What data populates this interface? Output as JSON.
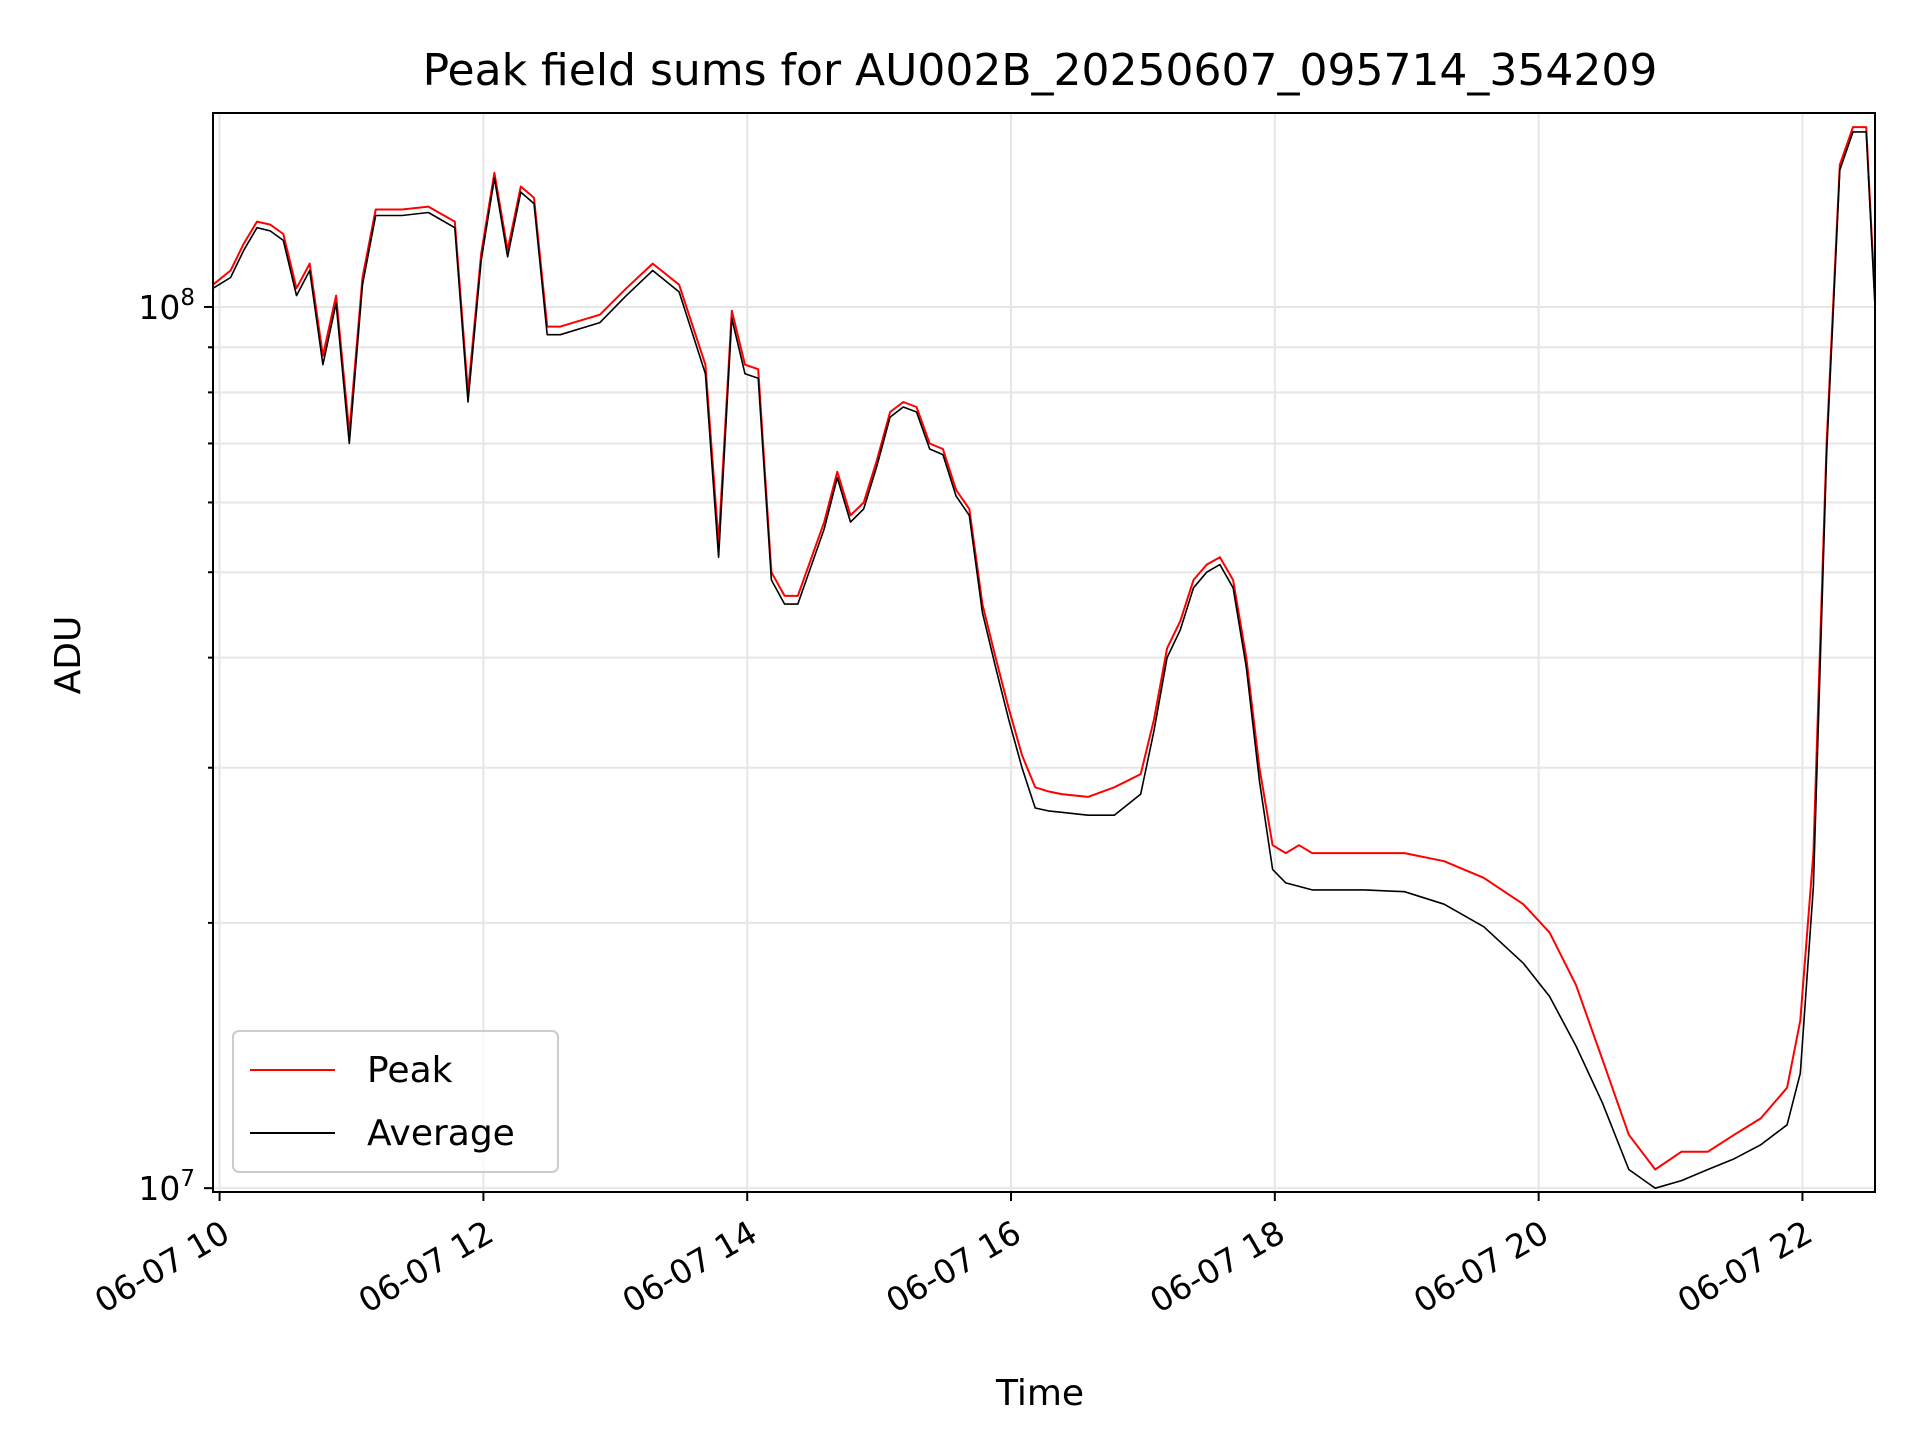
{
  "chart_data": {
    "type": "line",
    "title": "Peak field sums for AU002B_20250607_095714_354209",
    "xlabel": "Time",
    "ylabel": "ADU",
    "y_scale": "log",
    "ylim": [
      9900000,
      166000000
    ],
    "xlim": [
      "2025-06-07 09:57",
      "2025-06-07 22:33"
    ],
    "x_ticks": [
      "2025-06-07 10:00",
      "2025-06-07 12:00",
      "2025-06-07 14:00",
      "2025-06-07 16:00",
      "2025-06-07 18:00",
      "2025-06-07 20:00",
      "2025-06-07 22:00"
    ],
    "x_tick_labels": [
      "06-07 10",
      "06-07 12",
      "06-07 14",
      "06-07 16",
      "06-07 18",
      "06-07 20",
      "06-07 22"
    ],
    "y_tick_labels": [
      {
        "value": 10000000,
        "base": "10",
        "exp": "7"
      },
      {
        "value": 100000000,
        "base": "10",
        "exp": "8"
      }
    ],
    "grid": true,
    "legend_position": "lower-left",
    "series": [
      {
        "name": "Peak",
        "color": "#ff0000",
        "x": [
          "2025-06-07 09:57",
          "2025-06-07 10:05",
          "2025-06-07 10:11",
          "2025-06-07 10:17",
          "2025-06-07 10:23",
          "2025-06-07 10:29",
          "2025-06-07 10:35",
          "2025-06-07 10:41",
          "2025-06-07 10:47",
          "2025-06-07 10:53",
          "2025-06-07 10:59",
          "2025-06-07 11:05",
          "2025-06-07 11:11",
          "2025-06-07 11:23",
          "2025-06-07 11:35",
          "2025-06-07 11:47",
          "2025-06-07 11:53",
          "2025-06-07 11:59",
          "2025-06-07 12:05",
          "2025-06-07 12:11",
          "2025-06-07 12:17",
          "2025-06-07 12:23",
          "2025-06-07 12:29",
          "2025-06-07 12:35",
          "2025-06-07 12:53",
          "2025-06-07 13:05",
          "2025-06-07 13:17",
          "2025-06-07 13:29",
          "2025-06-07 13:41",
          "2025-06-07 13:47",
          "2025-06-07 13:53",
          "2025-06-07 13:59",
          "2025-06-07 14:05",
          "2025-06-07 14:11",
          "2025-06-07 14:17",
          "2025-06-07 14:23",
          "2025-06-07 14:35",
          "2025-06-07 14:41",
          "2025-06-07 14:47",
          "2025-06-07 14:53",
          "2025-06-07 14:59",
          "2025-06-07 15:05",
          "2025-06-07 15:11",
          "2025-06-07 15:17",
          "2025-06-07 15:23",
          "2025-06-07 15:29",
          "2025-06-07 15:35",
          "2025-06-07 15:41",
          "2025-06-07 15:47",
          "2025-06-07 15:53",
          "2025-06-07 15:59",
          "2025-06-07 16:05",
          "2025-06-07 16:11",
          "2025-06-07 16:17",
          "2025-06-07 16:23",
          "2025-06-07 16:35",
          "2025-06-07 16:47",
          "2025-06-07 16:59",
          "2025-06-07 17:05",
          "2025-06-07 17:11",
          "2025-06-07 17:17",
          "2025-06-07 17:23",
          "2025-06-07 17:29",
          "2025-06-07 17:35",
          "2025-06-07 17:41",
          "2025-06-07 17:47",
          "2025-06-07 17:53",
          "2025-06-07 17:59",
          "2025-06-07 18:05",
          "2025-06-07 18:11",
          "2025-06-07 18:17",
          "2025-06-07 18:23",
          "2025-06-07 18:41",
          "2025-06-07 18:59",
          "2025-06-07 19:17",
          "2025-06-07 19:35",
          "2025-06-07 19:53",
          "2025-06-07 20:05",
          "2025-06-07 20:17",
          "2025-06-07 20:29",
          "2025-06-07 20:41",
          "2025-06-07 20:53",
          "2025-06-07 21:05",
          "2025-06-07 21:17",
          "2025-06-07 21:29",
          "2025-06-07 21:41",
          "2025-06-07 21:53",
          "2025-06-07 21:59",
          "2025-06-07 22:05",
          "2025-06-07 22:11",
          "2025-06-07 22:17",
          "2025-06-07 22:23",
          "2025-06-07 22:29",
          "2025-06-07 22:33"
        ],
        "y": [
          106000000,
          110000000,
          118000000,
          125000000,
          124000000,
          121000000,
          105000000,
          112000000,
          88000000,
          103000000,
          72000000,
          108000000,
          129000000,
          129000000,
          130000000,
          125000000,
          80000000,
          115000000,
          142000000,
          116000000,
          137000000,
          133000000,
          95000000,
          95000000,
          98000000,
          105000000,
          112000000,
          106000000,
          86000000,
          54000000,
          99000000,
          86000000,
          85000000,
          50000000,
          47000000,
          47000000,
          57000000,
          65000000,
          58000000,
          60000000,
          67000000,
          76000000,
          78000000,
          77000000,
          70000000,
          69000000,
          62000000,
          59000000,
          46000000,
          40000000,
          35000000,
          31000000,
          28500000,
          28200000,
          28000000,
          27800000,
          28500000,
          29500000,
          34000000,
          41000000,
          44000000,
          49000000,
          51000000,
          52000000,
          49000000,
          40000000,
          30000000,
          24500000,
          24000000,
          24500000,
          24000000,
          24000000,
          24000000,
          24000000,
          23500000,
          22500000,
          21000000,
          19500000,
          17000000,
          14000000,
          11500000,
          10500000,
          11000000,
          11000000,
          11500000,
          12000000,
          13000000,
          15500000,
          24000000,
          70000000,
          145000000,
          160000000,
          160000000,
          102000000
        ]
      },
      {
        "name": "Average",
        "color": "#000000",
        "x": [
          "2025-06-07 09:57",
          "2025-06-07 10:05",
          "2025-06-07 10:11",
          "2025-06-07 10:17",
          "2025-06-07 10:23",
          "2025-06-07 10:29",
          "2025-06-07 10:35",
          "2025-06-07 10:41",
          "2025-06-07 10:47",
          "2025-06-07 10:53",
          "2025-06-07 10:59",
          "2025-06-07 11:05",
          "2025-06-07 11:11",
          "2025-06-07 11:23",
          "2025-06-07 11:35",
          "2025-06-07 11:47",
          "2025-06-07 11:53",
          "2025-06-07 11:59",
          "2025-06-07 12:05",
          "2025-06-07 12:11",
          "2025-06-07 12:17",
          "2025-06-07 12:23",
          "2025-06-07 12:29",
          "2025-06-07 12:35",
          "2025-06-07 12:53",
          "2025-06-07 13:05",
          "2025-06-07 13:17",
          "2025-06-07 13:29",
          "2025-06-07 13:41",
          "2025-06-07 13:47",
          "2025-06-07 13:53",
          "2025-06-07 13:59",
          "2025-06-07 14:05",
          "2025-06-07 14:11",
          "2025-06-07 14:17",
          "2025-06-07 14:23",
          "2025-06-07 14:35",
          "2025-06-07 14:41",
          "2025-06-07 14:47",
          "2025-06-07 14:53",
          "2025-06-07 14:59",
          "2025-06-07 15:05",
          "2025-06-07 15:11",
          "2025-06-07 15:17",
          "2025-06-07 15:23",
          "2025-06-07 15:29",
          "2025-06-07 15:35",
          "2025-06-07 15:41",
          "2025-06-07 15:47",
          "2025-06-07 15:53",
          "2025-06-07 15:59",
          "2025-06-07 16:05",
          "2025-06-07 16:11",
          "2025-06-07 16:17",
          "2025-06-07 16:23",
          "2025-06-07 16:35",
          "2025-06-07 16:47",
          "2025-06-07 16:59",
          "2025-06-07 17:05",
          "2025-06-07 17:11",
          "2025-06-07 17:17",
          "2025-06-07 17:23",
          "2025-06-07 17:29",
          "2025-06-07 17:35",
          "2025-06-07 17:41",
          "2025-06-07 17:47",
          "2025-06-07 17:53",
          "2025-06-07 17:59",
          "2025-06-07 18:05",
          "2025-06-07 18:11",
          "2025-06-07 18:17",
          "2025-06-07 18:23",
          "2025-06-07 18:41",
          "2025-06-07 18:59",
          "2025-06-07 19:17",
          "2025-06-07 19:35",
          "2025-06-07 19:53",
          "2025-06-07 20:05",
          "2025-06-07 20:17",
          "2025-06-07 20:29",
          "2025-06-07 20:41",
          "2025-06-07 20:53",
          "2025-06-07 21:05",
          "2025-06-07 21:17",
          "2025-06-07 21:29",
          "2025-06-07 21:41",
          "2025-06-07 21:53",
          "2025-06-07 21:59",
          "2025-06-07 22:05",
          "2025-06-07 22:11",
          "2025-06-07 22:17",
          "2025-06-07 22:23",
          "2025-06-07 22:29",
          "2025-06-07 22:33"
        ],
        "y": [
          105000000,
          108000000,
          116000000,
          123000000,
          122000000,
          119000000,
          103000000,
          110000000,
          86000000,
          101000000,
          70000000,
          106000000,
          127000000,
          127000000,
          128000000,
          123000000,
          78000000,
          113000000,
          140000000,
          114000000,
          135000000,
          131000000,
          93000000,
          93000000,
          96000000,
          103000000,
          110000000,
          104000000,
          84000000,
          52000000,
          97000000,
          84000000,
          83000000,
          49000000,
          46000000,
          46000000,
          56000000,
          64000000,
          57000000,
          59000000,
          66000000,
          75000000,
          77000000,
          76000000,
          69000000,
          68000000,
          61000000,
          58000000,
          45000000,
          39000000,
          34000000,
          30000000,
          27000000,
          26800000,
          26700000,
          26500000,
          26500000,
          28000000,
          33000000,
          40000000,
          43000000,
          48000000,
          50000000,
          51000000,
          48000000,
          39000000,
          29000000,
          23000000,
          22200000,
          22000000,
          21800000,
          21800000,
          21800000,
          21700000,
          21000000,
          19800000,
          18000000,
          16500000,
          14500000,
          12500000,
          10500000,
          10000000,
          10200000,
          10500000,
          10800000,
          11200000,
          11800000,
          13500000,
          22000000,
          68000000,
          143000000,
          158000000,
          158000000,
          100000000
        ]
      }
    ]
  }
}
